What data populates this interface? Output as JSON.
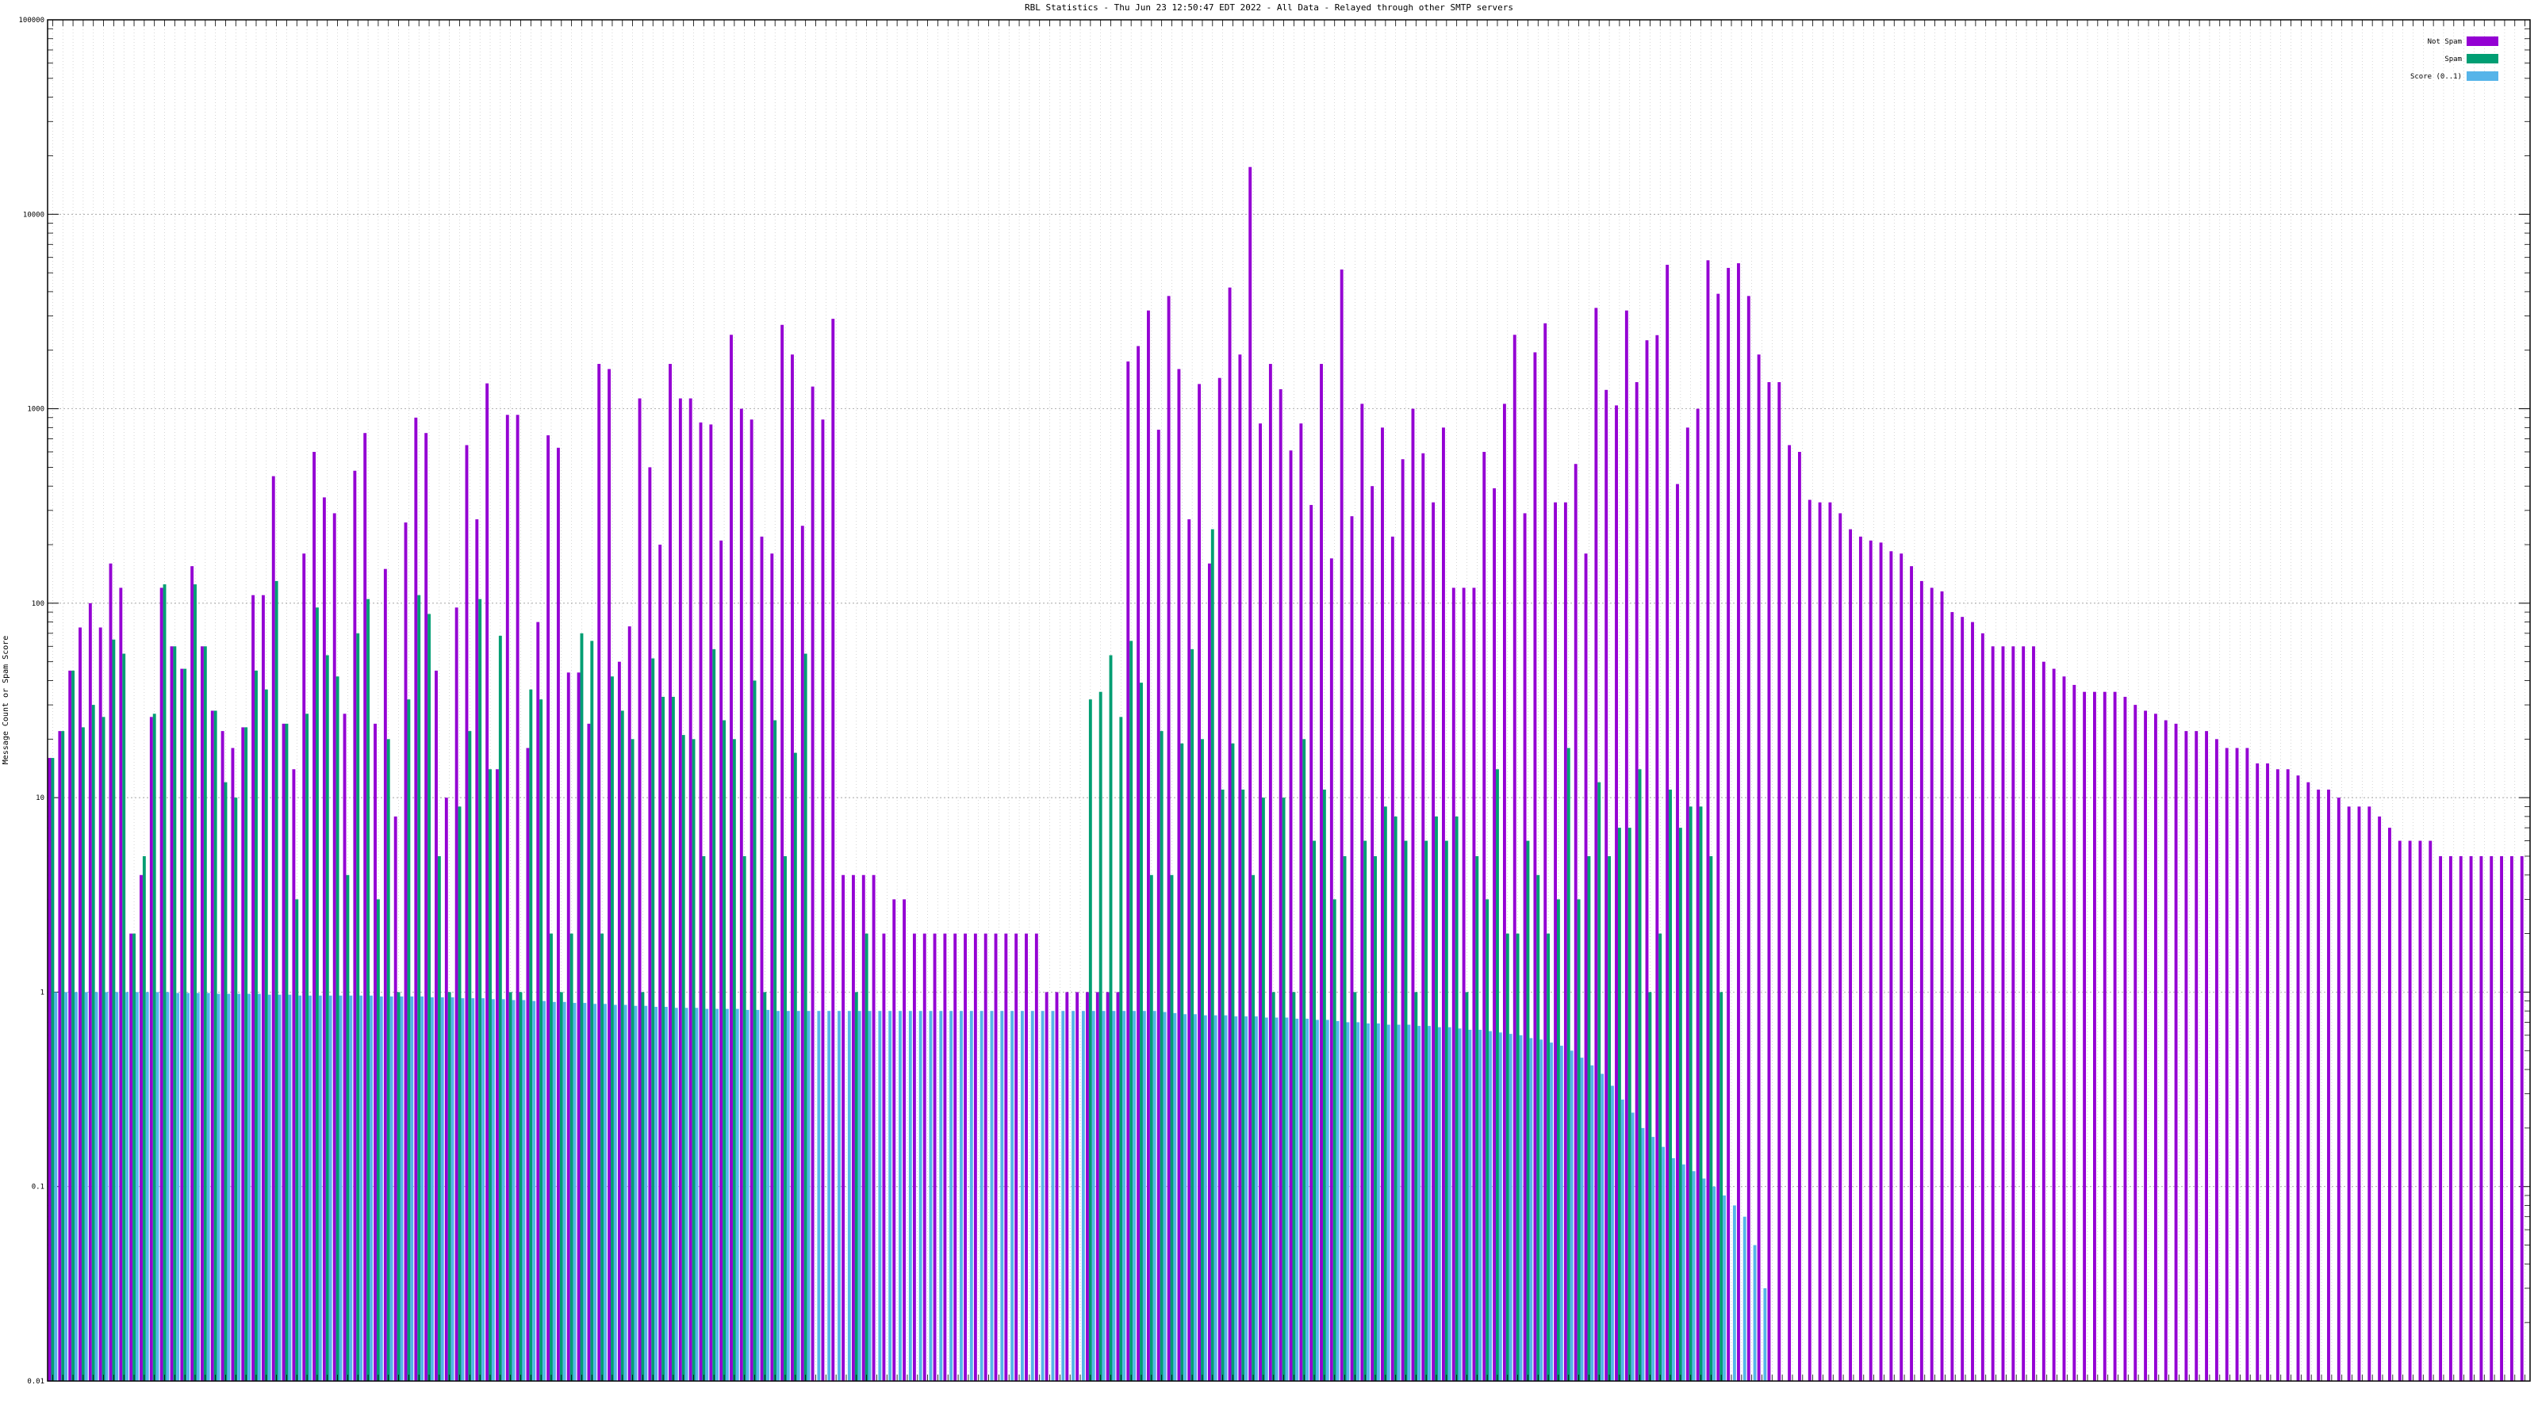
{
  "chart_data": {
    "type": "bar",
    "title": "RBL Statistics - Thu Jun 23 12:50:47 EDT 2022 - All Data - Relayed through other SMTP servers",
    "ylabel": "Message Count or Spam Score",
    "xlabel": "",
    "yscale": "log",
    "ylim": [
      0.01,
      100000
    ],
    "ytick_labels": [
      "0.01",
      "0.1",
      "1",
      "10",
      "100",
      "1000",
      "10000",
      "100000"
    ],
    "grid": true,
    "legend_position": "top-right",
    "series": [
      {
        "name": "Not Spam",
        "color": "#9400d3",
        "values": [
          16,
          22,
          45,
          75,
          100,
          75,
          160,
          120,
          2,
          4,
          26,
          120,
          60,
          46,
          155,
          60,
          28,
          22,
          18,
          23,
          110,
          110,
          450,
          24,
          14,
          180,
          600,
          350,
          290,
          27,
          480,
          750,
          24,
          150,
          8,
          260,
          900,
          750,
          45,
          10,
          95,
          650,
          270,
          1350,
          14,
          930,
          930,
          18,
          80,
          730,
          630,
          44,
          44,
          24,
          1700,
          1600,
          50,
          76,
          1130,
          500,
          200,
          1700,
          1130,
          1130,
          850,
          830,
          210,
          2400,
          1000,
          880,
          220,
          180,
          2700,
          1900,
          250,
          1300,
          880,
          2900,
          4,
          4,
          4,
          4,
          2,
          3,
          3,
          2,
          2,
          2,
          2,
          2,
          2,
          2,
          2,
          2,
          2,
          2,
          2,
          2,
          1,
          1,
          1,
          1,
          1,
          1,
          1,
          1,
          1750,
          2100,
          3200,
          780,
          3800,
          1600,
          270,
          1340,
          160,
          1440,
          4200,
          1900,
          17500,
          840,
          1700,
          1260,
          610,
          840,
          320,
          1700,
          170,
          5200,
          280,
          1060,
          400,
          800,
          220,
          550,
          1000,
          590,
          330,
          800,
          120,
          120,
          120,
          600,
          390,
          1060,
          2400,
          290,
          1950,
          2750,
          330,
          330,
          520,
          180,
          3300,
          1250,
          1040,
          3200,
          1370,
          2250,
          2390,
          5500,
          410,
          800,
          1000,
          5800,
          3900,
          5300,
          5600,
          3800,
          1900,
          1370,
          1370,
          650,
          600,
          340,
          330,
          330,
          290,
          240,
          220,
          210,
          205,
          185,
          180,
          155,
          130,
          120,
          115,
          90,
          85,
          80,
          70,
          60,
          60,
          60,
          60,
          60,
          50,
          46,
          42,
          38,
          35,
          35,
          35,
          35,
          33,
          30,
          28,
          27,
          25,
          24,
          22,
          22,
          22,
          20,
          18,
          18,
          18,
          15,
          15,
          14,
          14,
          13,
          12,
          11,
          11,
          10,
          9,
          9,
          9,
          8,
          7,
          6,
          6,
          6,
          6,
          5,
          5,
          5,
          5,
          5,
          5,
          5,
          5,
          5
        ]
      },
      {
        "name": "Spam",
        "color": "#009e73",
        "values": [
          16,
          22,
          45,
          23,
          30,
          26,
          65,
          55,
          2,
          5,
          27,
          125,
          60,
          46,
          125,
          60,
          28,
          12,
          10,
          23,
          45,
          36,
          130,
          24,
          3,
          27,
          95,
          54,
          42,
          4,
          70,
          105,
          3,
          20,
          1,
          32,
          110,
          88,
          5,
          1,
          9,
          22,
          105,
          14,
          68,
          1,
          1,
          36,
          32,
          2,
          1,
          2,
          70,
          64,
          2,
          42,
          28,
          20,
          1,
          52,
          33,
          33,
          21,
          20,
          5,
          58,
          25,
          20,
          5,
          40,
          1,
          25,
          5,
          17,
          55,
          0,
          0,
          0,
          0,
          1,
          2,
          0,
          0,
          0,
          0,
          0,
          0,
          0,
          0,
          0,
          0,
          0,
          0,
          0,
          0,
          0,
          0,
          0,
          0,
          0,
          0,
          0,
          32,
          35,
          54,
          26,
          64,
          39,
          4,
          22,
          4,
          19,
          58,
          20,
          240,
          11,
          19,
          11,
          4,
          10,
          1,
          10,
          1,
          20,
          6,
          11,
          3,
          5,
          1,
          6,
          5,
          9,
          8,
          6,
          1,
          6,
          8,
          6,
          8,
          1,
          5,
          3,
          14,
          2,
          2,
          6,
          4,
          2,
          3,
          18,
          3,
          5,
          12,
          5,
          7,
          7,
          14,
          1,
          2,
          11,
          7,
          9,
          9,
          5,
          1
        ]
      },
      {
        "name": "Score (0..1)",
        "color": "#56b4e9",
        "values": [
          1,
          1,
          1,
          1,
          1,
          1,
          1,
          1,
          1,
          1,
          1,
          1,
          0.99,
          0.99,
          0.99,
          0.99,
          0.98,
          0.98,
          0.98,
          0.98,
          0.98,
          0.97,
          0.97,
          0.97,
          0.96,
          0.96,
          0.96,
          0.96,
          0.96,
          0.96,
          0.96,
          0.96,
          0.95,
          0.95,
          0.95,
          0.95,
          0.95,
          0.94,
          0.94,
          0.94,
          0.93,
          0.93,
          0.93,
          0.92,
          0.92,
          0.91,
          0.91,
          0.9,
          0.9,
          0.89,
          0.89,
          0.88,
          0.88,
          0.87,
          0.87,
          0.86,
          0.86,
          0.85,
          0.85,
          0.84,
          0.84,
          0.83,
          0.83,
          0.83,
          0.82,
          0.82,
          0.82,
          0.82,
          0.81,
          0.81,
          0.81,
          0.8,
          0.8,
          0.8,
          0.8,
          0.8,
          0.8,
          0.8,
          0.8,
          0.8,
          0.8,
          0.8,
          0.8,
          0.8,
          0.8,
          0.8,
          0.8,
          0.8,
          0.8,
          0.8,
          0.8,
          0.8,
          0.8,
          0.8,
          0.8,
          0.8,
          0.8,
          0.8,
          0.8,
          0.8,
          0.8,
          0.8,
          0.8,
          0.8,
          0.8,
          0.8,
          0.8,
          0.8,
          0.8,
          0.79,
          0.78,
          0.77,
          0.77,
          0.76,
          0.76,
          0.76,
          0.75,
          0.75,
          0.75,
          0.74,
          0.74,
          0.74,
          0.73,
          0.73,
          0.72,
          0.72,
          0.71,
          0.7,
          0.7,
          0.69,
          0.69,
          0.68,
          0.68,
          0.68,
          0.67,
          0.67,
          0.66,
          0.66,
          0.65,
          0.64,
          0.64,
          0.63,
          0.62,
          0.61,
          0.6,
          0.58,
          0.57,
          0.55,
          0.53,
          0.5,
          0.46,
          0.42,
          0.38,
          0.33,
          0.28,
          0.24,
          0.2,
          0.18,
          0.16,
          0.14,
          0.13,
          0.12,
          0.11,
          0.1,
          0.09,
          0.08,
          0.07,
          0.05,
          0.03
        ]
      }
    ]
  }
}
